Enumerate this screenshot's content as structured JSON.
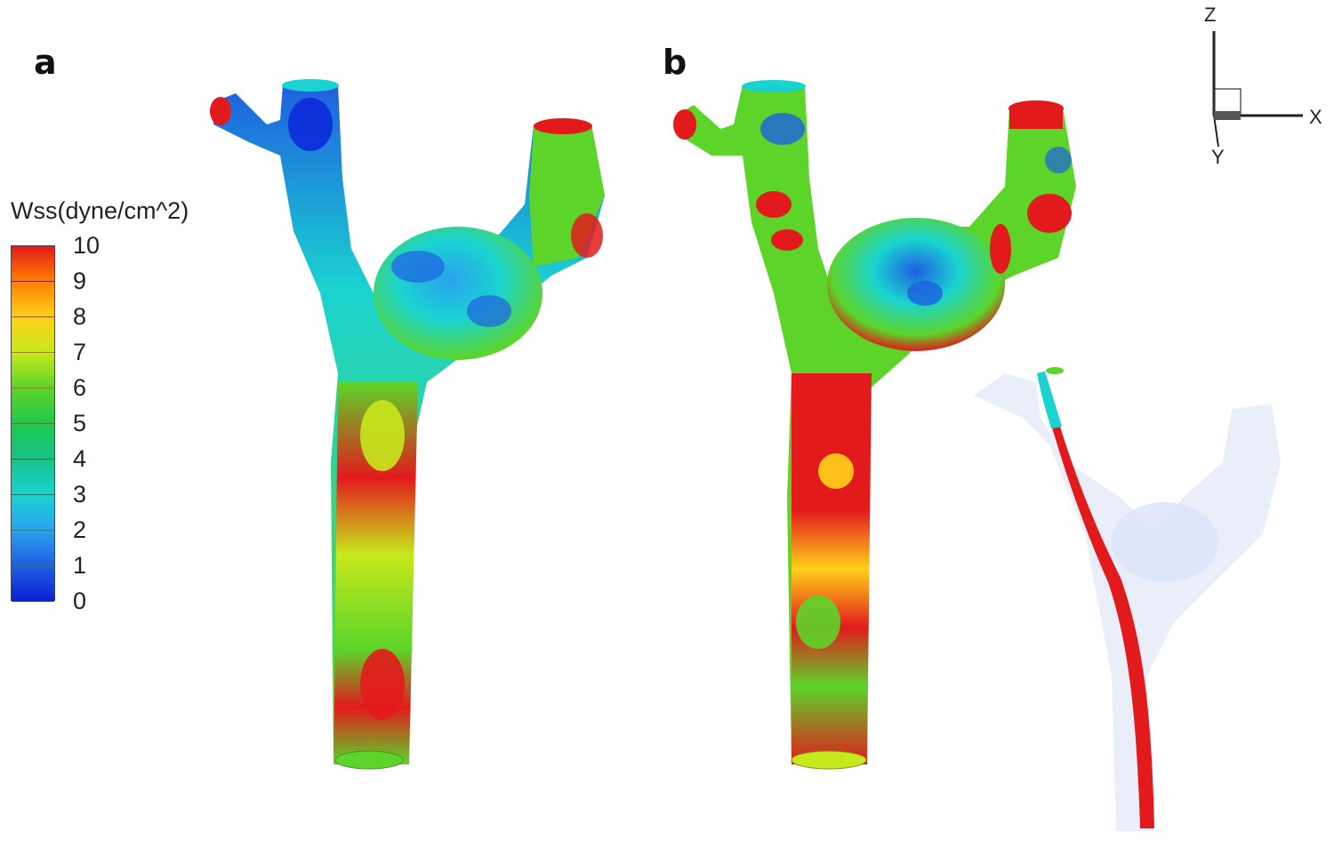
{
  "panels": {
    "a": {
      "label": "a"
    },
    "b": {
      "label": "b"
    }
  },
  "legend": {
    "title": "Wss(dyne/cm^2)",
    "ticks": [
      "10",
      "9",
      "8",
      "7",
      "6",
      "5",
      "4",
      "3",
      "2",
      "1",
      "0"
    ],
    "colors": [
      "#e31a1c",
      "#ff7f00",
      "#ffd11a",
      "#c7e81c",
      "#5cd42a",
      "#1fc94a",
      "#17c28a",
      "#1ad3d0",
      "#2aa2f0",
      "#1f5fe0",
      "#0a20d8"
    ]
  },
  "axes": {
    "z": "Z",
    "x": "X",
    "y": "Y"
  }
}
